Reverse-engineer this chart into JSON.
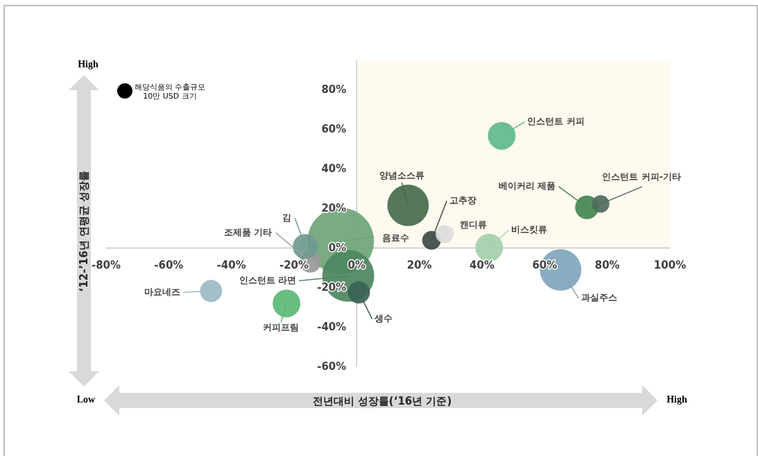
{
  "chart_data": {
    "type": "bubble",
    "xlabel": "전년대비 성장률(‘16년 기준)",
    "ylabel": "‘12-’16년 연평균 성장률",
    "xlim": [
      -80,
      100
    ],
    "ylim": [
      -60,
      95
    ],
    "xticks": [
      {
        "value": -80,
        "label": "-80%"
      },
      {
        "value": -60,
        "label": "-60%"
      },
      {
        "value": -40,
        "label": "-40%"
      },
      {
        "value": -20,
        "label": "-20%"
      },
      {
        "value": 0,
        "label": "0%"
      },
      {
        "value": 20,
        "label": "20%"
      },
      {
        "value": 40,
        "label": "40%"
      },
      {
        "value": 60,
        "label": "60%"
      },
      {
        "value": 80,
        "label": "80%"
      },
      {
        "value": 100,
        "label": "100%"
      }
    ],
    "yticks": [
      {
        "value": -60,
        "label": "-60%"
      },
      {
        "value": -40,
        "label": "-40%"
      },
      {
        "value": -20,
        "label": "-20%"
      },
      {
        "value": 0,
        "label": "0%"
      },
      {
        "value": 20,
        "label": "20%"
      },
      {
        "value": 40,
        "label": "40%"
      },
      {
        "value": 60,
        "label": "60%"
      },
      {
        "value": 80,
        "label": "80%"
      }
    ],
    "grid": false,
    "size_legend": [
      {
        "value": 1,
        "label": "해당식품의 수출규모\n10만 USD 크기"
      }
    ],
    "bands": [
      {
        "axis": "x",
        "from": 0,
        "to": 100,
        "label": null,
        "color": "#fffaef"
      }
    ],
    "annotations": [
      "High",
      "Low",
      "High"
    ],
    "series": [
      {
        "name": "음료수",
        "color": "#6fa478",
        "x": [
          -5.1
        ],
        "values": [
          3.5
        ],
        "sizes": [
          19
        ]
      },
      {
        "name": "인스턴트 라면",
        "color": "#4d8660",
        "x": [
          -2.7
        ],
        "values": [
          -14.1
        ],
        "sizes": [
          11.6
        ]
      },
      {
        "name": "조제품 기타",
        "color": "#9a9a9a",
        "x": [
          -14.8
        ],
        "values": [
          -7.0
        ],
        "sizes": [
          2.0
        ]
      },
      {
        "name": "김",
        "color": "#6e9a90",
        "x": [
          -16.4
        ],
        "values": [
          0.7
        ],
        "sizes": [
          2.7
        ]
      },
      {
        "name": "생수",
        "color": "#3a6354",
        "x": [
          0.7
        ],
        "values": [
          -22.5
        ],
        "sizes": [
          2.1
        ]
      },
      {
        "name": "마요네즈",
        "color": "#9bbac6",
        "x": [
          -46.5
        ],
        "values": [
          -21.8
        ],
        "sizes": [
          2.1
        ]
      },
      {
        "name": "커피프림",
        "color": "#5cb877",
        "x": [
          -22.4
        ],
        "values": [
          -28.1
        ],
        "sizes": [
          3.3
        ]
      },
      {
        "name": "인스턴트 커피",
        "color": "#5fba8a",
        "x": [
          46.3
        ],
        "values": [
          56.8
        ],
        "sizes": [
          3.3
        ]
      },
      {
        "name": "양념소스류",
        "color": "#476b4d",
        "x": [
          16.4
        ],
        "values": [
          21.6
        ],
        "sizes": [
          7.4
        ]
      },
      {
        "name": "고추장",
        "color": "#3f4a45",
        "x": [
          23.9
        ],
        "values": [
          3.9
        ],
        "sizes": [
          1.5
        ]
      },
      {
        "name": "캔디류",
        "color": "#dcdcdc",
        "x": [
          28.1
        ],
        "values": [
          7.0
        ],
        "sizes": [
          1.4
        ]
      },
      {
        "name": "비스킷류",
        "color": "#a4cfac",
        "x": [
          42.3
        ],
        "values": [
          0.2
        ],
        "sizes": [
          3.3
        ]
      },
      {
        "name": "베이커리 제품",
        "color": "#448650",
        "x": [
          73.5
        ],
        "values": [
          20.6
        ],
        "sizes": [
          2.4
        ]
      },
      {
        "name": "인스턴트 커피-기타",
        "color": "#4f6a5c",
        "x": [
          77.9
        ],
        "values": [
          22.3
        ],
        "sizes": [
          1.3
        ]
      },
      {
        "name": "과실주스",
        "color": "#7fa6bb",
        "x": [
          65.1
        ],
        "values": [
          -11.1
        ],
        "sizes": [
          7.4
        ]
      }
    ]
  }
}
